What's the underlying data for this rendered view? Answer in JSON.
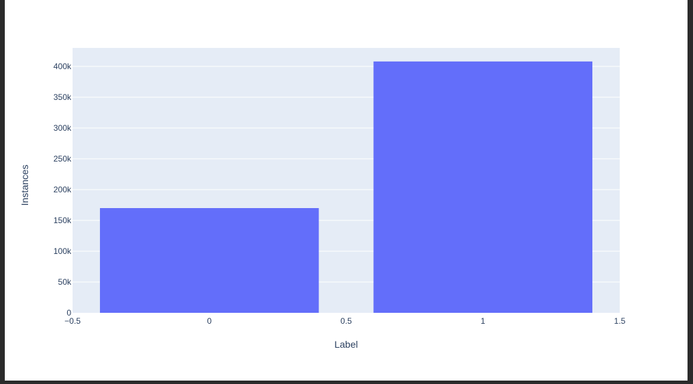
{
  "chart_data": {
    "type": "bar",
    "title": "",
    "xlabel": "Label",
    "ylabel": "Instances",
    "x": [
      0,
      1
    ],
    "values": [
      170000,
      408000
    ],
    "bar_width": 0.8,
    "xlim": [
      -0.5,
      1.5
    ],
    "ylim": [
      0,
      430000
    ],
    "x_ticks": [
      -0.5,
      0,
      0.5,
      1,
      1.5
    ],
    "x_tick_labels": [
      "−0.5",
      "0",
      "0.5",
      "1",
      "1.5"
    ],
    "y_ticks": [
      0,
      50000,
      100000,
      150000,
      200000,
      250000,
      300000,
      350000,
      400000
    ],
    "y_tick_labels": [
      "0",
      "50k",
      "100k",
      "150k",
      "200k",
      "250k",
      "300k",
      "350k",
      "400k"
    ],
    "grid": true,
    "colors": {
      "bar": "#636efa",
      "plot_bg": "#e5ecf6",
      "grid": "#ffffff",
      "text": "#2a3f5f"
    }
  }
}
